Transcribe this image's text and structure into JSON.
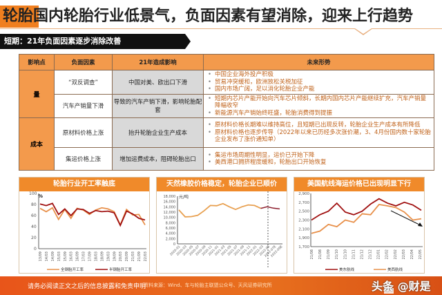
{
  "header": {
    "title": "轮胎国内轮胎行业低景气，负面因素有望消除，迎来上行趋势",
    "accent_color": "#f07f1f"
  },
  "section": {
    "label": "短期：21年负面因素逐步消除改善"
  },
  "table": {
    "headers": [
      "影响点",
      "负面因素",
      "21年造成影响",
      "未来形势"
    ],
    "groups": [
      {
        "category": "量",
        "rows": [
          {
            "factor": "“双反调查”",
            "impact": "中国对美、欧出口下滑",
            "trends": [
              "中国企业海外投产积极",
              "贸易冲突缓和，欧洲放松关税加征",
              "国内市场广阔，足以消化轮胎企业产能"
            ]
          },
          {
            "factor": "汽车产销量下滑",
            "impact": "导致的汽车产销下滑，影响轮胎配套",
            "trends": [
              "短期内芯片产能开始向汽车芯片倾斜，长期内国内芯片产能继续扩充，汽车产销量降幅收窄",
              "新能源汽车产销始终旺盛，轮胎消费得到提振"
            ]
          }
        ]
      },
      {
        "category": "成本",
        "rows": [
          {
            "factor": "原材料价格上涨",
            "impact": "抬升轮胎企业生产成本",
            "trends": [
              "原材料价格长期难以维持高位，且短期已出现反转，轮胎企业生产成本有所降低",
              "原材料价格也逐步传导（2022年以来已历经多次涨价潮，3、4月份国内数十家轮胎企业发布了涨价通知单）"
            ]
          },
          {
            "factor": "集运价格上涨",
            "impact": "增加运费成本，阻碍轮胎出口",
            "trends": [
              "集运市场周期性明显，运价已开始下降",
              "美西港口拥挤程度缓和，轮胎出口开始恢复"
            ]
          }
        ]
      }
    ]
  },
  "chart_data": [
    {
      "type": "line",
      "title": "轮胎行业开工率触底",
      "ylabel": "%",
      "ylim": [
        0,
        100
      ],
      "yticks": [
        0,
        20,
        40,
        60,
        80,
        100
      ],
      "categories": [
        "13/09",
        "14/03",
        "14/09",
        "15/03",
        "15/09",
        "16/03",
        "16/09",
        "17/03",
        "17/09",
        "18/03",
        "18/09",
        "19/03",
        "19/09",
        "20/03",
        "20/09",
        "21/03",
        "21/09",
        "22/03"
      ],
      "series": [
        {
          "name": "全钢胎开工率",
          "color": "#e8904a",
          "values": [
            73,
            67,
            74,
            53,
            71,
            55,
            73,
            70,
            62,
            70,
            74,
            72,
            67,
            43,
            71,
            61,
            62,
            43
          ]
        },
        {
          "name": "半钢胎开工率",
          "color": "#a01010",
          "values": [
            81,
            78,
            82,
            62,
            72,
            60,
            72,
            71,
            64,
            69,
            67,
            68,
            65,
            42,
            68,
            63,
            55,
            52
          ]
        }
      ],
      "legend_position": "bottom"
    },
    {
      "type": "line",
      "title": "天然橡胶价格稳定，轮胎企业已顺价",
      "ylabel": "元/吨",
      "ylim": [
        0,
        18000
      ],
      "yticks": [
        0,
        2000,
        4000,
        6000,
        8000,
        10000,
        12000,
        14000,
        16000,
        18000
      ],
      "categories": [
        "2020-01",
        "2020-03",
        "2020-05",
        "2020-07",
        "2020-09",
        "2020-11",
        "2021-01",
        "2021-03",
        "2021-05",
        "2021-07",
        "2021-09",
        "2021-11",
        "2022-01",
        "2022-03",
        "2022-05",
        "2022-07E",
        "2022-09E"
      ],
      "series": [
        {
          "name": "历史价格",
          "color": "#e8a050",
          "values": [
            12800,
            10200,
            10300,
            10800,
            12500,
            14500,
            14400,
            15200,
            14000,
            13000,
            14000,
            14700,
            14500,
            13400
          ]
        },
        {
          "name": "预测价格",
          "color": "#8a1a2a",
          "values": [
            13400,
            14000,
            13500,
            13200
          ]
        }
      ],
      "annotations": [
        "dashed vertical line at 2022-05"
      ]
    },
    {
      "type": "line",
      "title": "美国航线海运价格已出现明显下行",
      "ylim": [
        1700,
        2900
      ],
      "yticks": [
        1700,
        1900,
        2100,
        2300,
        2500,
        2700,
        2900
      ],
      "categories": [
        "21/08",
        "21/08",
        "21/09",
        "21/10",
        "21/10",
        "21/11",
        "21/12",
        "21/12",
        "22/01",
        "22/02",
        "22/02",
        "22/03",
        "22/04",
        "22/05"
      ],
      "series": [
        {
          "name": "美东航线",
          "color": "#a01010",
          "values": [
            2300,
            2420,
            2500,
            2680,
            2480,
            2420,
            2500,
            2660,
            2780,
            2680,
            2620,
            2700,
            2640,
            2520
          ]
        },
        {
          "name": "美西航线",
          "color": "#e8904a",
          "values": [
            2000,
            2050,
            2200,
            2150,
            2300,
            2250,
            2440,
            2420,
            2650,
            2620,
            2580,
            2480,
            2300,
            2330
          ]
        }
      ],
      "annotations": [
        "black arrow pointing down-right indicating decline"
      ],
      "legend_position": "bottom"
    }
  ],
  "footer": {
    "disclaimer": "请务必阅读正文之后的信息披露和免责申明",
    "source": "资料来源：Wind、车与轮胎主联盟公众号、天风证券研究所",
    "watermark": "头条 @财是"
  }
}
